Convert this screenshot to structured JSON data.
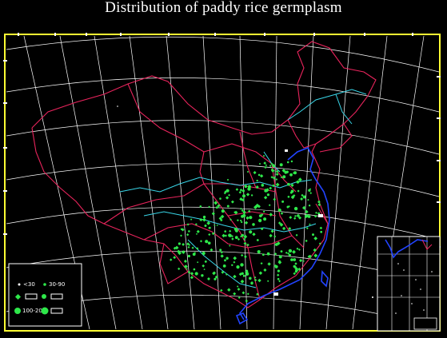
{
  "title": "Distribution of paddy rice germplasm",
  "colors": {
    "background": "#000000",
    "frame": "#ffff33",
    "graticule": "#ffffff",
    "province_borders": "#e8245c",
    "rivers": "#39d6e8",
    "coast": "#2244ff",
    "sample_points": "#2ee84a"
  },
  "legend": {
    "items": [
      {
        "label": "<30",
        "marker": "small-dot"
      },
      {
        "label": "30-90",
        "marker": "medium-dot"
      },
      {
        "label": "",
        "marker": "diamond-dot"
      },
      {
        "label": "",
        "marker": "large-dot"
      },
      {
        "label": "100-200",
        "marker": "xlarge-dot"
      },
      {
        "label": "",
        "marker": "xlarge-dot-2"
      }
    ]
  },
  "inset_map": {
    "description_visible": false
  }
}
